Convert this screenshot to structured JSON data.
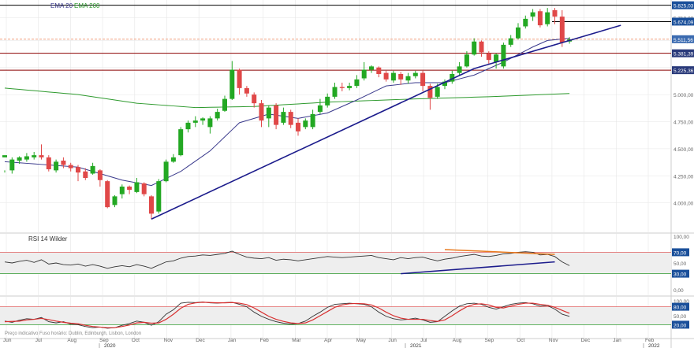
{
  "colors": {
    "up": "#23a823",
    "down": "#e04848",
    "ema20": "#3a3a8c",
    "ema200": "#2e9a2e",
    "trendline": "#1c1c8c",
    "hline_dark": "#8b0000",
    "hline_dashed": "#f0a080",
    "rsi_line": "#333333",
    "rsi_trend_orange": "#e87a1e",
    "rsi_trend_blue": "#1c1c8c",
    "rsi_band_fill": "#eeeeee",
    "stoch_k": "#333333",
    "stoch_d": "#d83030",
    "level_red": "#e06060",
    "level_green": "#2e9a2e",
    "grid": "#e6e6e6",
    "axis_text": "#666666"
  },
  "legend": {
    "ema20_label": "EMA 20",
    "ema200_label": "EMA 200",
    "rsi_label": "RSI 14 Wilder"
  },
  "footer": {
    "note": "Preço indicativo    Fuso horário: Dublin, Edinburgh, Lisbon, London"
  },
  "chart_data": [
    {
      "type": "candlestick",
      "panel": "price",
      "interval": "weekly",
      "ylim": [
        3750,
        5830
      ],
      "yticks": [
        4000,
        4250,
        4500,
        4750,
        5000,
        5250,
        5500,
        5710
      ],
      "ytick_labels": [
        "4.000,00",
        "4.250,00",
        "4.500,00",
        "4.750,00",
        "5.000,00",
        "5.250,00",
        "5.500,00",
        "5.710,00"
      ],
      "price_tags": [
        {
          "label": "5.825,03",
          "value": 5825.03,
          "style": "black"
        },
        {
          "label": "5.674,09",
          "value": 5674.09,
          "style": "black"
        },
        {
          "label": "5.511,56",
          "value": 5511.56,
          "style": "dashed"
        },
        {
          "label": "5.381,39",
          "value": 5381.39,
          "style": "dark"
        },
        {
          "label": "5.225,36",
          "value": 5225.36,
          "style": "dark"
        }
      ],
      "xlabels": [
        "Jun",
        "Jul",
        "Aug",
        "Sep",
        "Oct",
        "Nov",
        "Dec",
        "Jan",
        "Feb",
        "Mar",
        "Apr",
        "May",
        "Jun",
        "Jul",
        "Aug",
        "Sep",
        "Oct",
        "Nov",
        "Dec",
        "Jan",
        "Feb"
      ],
      "year_labels": [
        "2020",
        "2021",
        "2022"
      ],
      "candles": [
        [
          4420,
          4440,
          4300,
          4280
        ],
        [
          4300,
          4400,
          4420,
          4270
        ],
        [
          4390,
          4420,
          4430,
          4360
        ],
        [
          4400,
          4430,
          4460,
          4380
        ],
        [
          4420,
          4440,
          4470,
          4400
        ],
        [
          4440,
          4420,
          4540,
          4400
        ],
        [
          4420,
          4310,
          4440,
          4290
        ],
        [
          4300,
          4380,
          4400,
          4280
        ],
        [
          4390,
          4350,
          4420,
          4320
        ],
        [
          4350,
          4320,
          4370,
          4290
        ],
        [
          4330,
          4280,
          4350,
          4200
        ],
        [
          4290,
          4230,
          4320,
          4210
        ],
        [
          4270,
          4340,
          4370,
          4260
        ],
        [
          4300,
          4210,
          4310,
          4150
        ],
        [
          4200,
          3960,
          4210,
          3950
        ],
        [
          3980,
          4060,
          4070,
          3960
        ],
        [
          4080,
          4150,
          4170,
          4040
        ],
        [
          4150,
          4120,
          4160,
          4080
        ],
        [
          4100,
          4190,
          4230,
          4090
        ],
        [
          4180,
          4080,
          4190,
          4060
        ],
        [
          4060,
          3900,
          4070,
          3850
        ],
        [
          3920,
          4200,
          4220,
          3900
        ],
        [
          4200,
          4380,
          4400,
          4190
        ],
        [
          4380,
          4420,
          4450,
          4370
        ],
        [
          4440,
          4680,
          4700,
          4430
        ],
        [
          4680,
          4740,
          4760,
          4650
        ],
        [
          4740,
          4760,
          4800,
          4700
        ],
        [
          4760,
          4780,
          4790,
          4720
        ],
        [
          4700,
          4780,
          4800,
          4640
        ],
        [
          4780,
          4840,
          4870,
          4760
        ],
        [
          4850,
          4960,
          4990,
          4840
        ],
        [
          4960,
          5230,
          5310,
          4950
        ],
        [
          5230,
          5060,
          5240,
          5000
        ],
        [
          5060,
          5010,
          5080,
          4980
        ],
        [
          5000,
          4920,
          5020,
          4880
        ],
        [
          4920,
          4760,
          4950,
          4700
        ],
        [
          4780,
          4880,
          4900,
          4700
        ],
        [
          4900,
          4720,
          4920,
          4680
        ],
        [
          4740,
          4840,
          4880,
          4720
        ],
        [
          4840,
          4720,
          4860,
          4690
        ],
        [
          4740,
          4660,
          4780,
          4620
        ],
        [
          4700,
          4760,
          4780,
          4680
        ],
        [
          4700,
          4820,
          4860,
          4680
        ],
        [
          4840,
          4900,
          4960,
          4820
        ],
        [
          4900,
          4980,
          5010,
          4880
        ],
        [
          4980,
          5070,
          5110,
          4960
        ],
        [
          5070,
          5060,
          5110,
          5030
        ],
        [
          5060,
          5080,
          5110,
          5040
        ],
        [
          5080,
          5140,
          5180,
          5060
        ],
        [
          5150,
          5230,
          5300,
          5130
        ],
        [
          5230,
          5260,
          5270,
          5200
        ],
        [
          5250,
          5190,
          5260,
          5160
        ],
        [
          5200,
          5140,
          5220,
          5120
        ],
        [
          5130,
          5200,
          5220,
          5110
        ],
        [
          5190,
          5140,
          5210,
          5090
        ],
        [
          5130,
          5170,
          5200,
          5100
        ],
        [
          5170,
          5200,
          5220,
          5150
        ],
        [
          5200,
          5080,
          5220,
          5030
        ],
        [
          5080,
          4970,
          5100,
          4860
        ],
        [
          4980,
          5070,
          5100,
          4960
        ],
        [
          5080,
          5120,
          5140,
          5050
        ],
        [
          5120,
          5190,
          5220,
          5100
        ],
        [
          5200,
          5260,
          5300,
          5180
        ],
        [
          5260,
          5370,
          5400,
          5250
        ],
        [
          5370,
          5490,
          5520,
          5360
        ],
        [
          5490,
          5390,
          5500,
          5350
        ],
        [
          5380,
          5320,
          5400,
          5280
        ],
        [
          5300,
          5370,
          5380,
          5240
        ],
        [
          5260,
          5460,
          5480,
          5240
        ],
        [
          5460,
          5520,
          5550,
          5440
        ],
        [
          5520,
          5620,
          5660,
          5510
        ],
        [
          5630,
          5700,
          5730,
          5610
        ],
        [
          5720,
          5760,
          5790,
          5680
        ],
        [
          5770,
          5640,
          5790,
          5620
        ],
        [
          5650,
          5760,
          5800,
          5630
        ],
        [
          5780,
          5720,
          5800,
          5650
        ],
        [
          5720,
          5480,
          5780,
          5440
        ],
        [
          5490,
          5510,
          5530,
          5470
        ]
      ],
      "ema20_anchors": [
        [
          0,
          4380
        ],
        [
          10,
          4330
        ],
        [
          16,
          4210
        ],
        [
          20,
          4160
        ],
        [
          24,
          4290
        ],
        [
          28,
          4480
        ],
        [
          32,
          4740
        ],
        [
          36,
          4820
        ],
        [
          40,
          4780
        ],
        [
          44,
          4830
        ],
        [
          48,
          4950
        ],
        [
          52,
          5080
        ],
        [
          56,
          5110
        ],
        [
          60,
          5110
        ],
        [
          64,
          5180
        ],
        [
          68,
          5300
        ],
        [
          72,
          5440
        ],
        [
          74,
          5500
        ],
        [
          77,
          5520
        ]
      ],
      "ema200_anchors": [
        [
          0,
          5060
        ],
        [
          10,
          5000
        ],
        [
          18,
          4920
        ],
        [
          26,
          4880
        ],
        [
          34,
          4890
        ],
        [
          44,
          4930
        ],
        [
          56,
          4960
        ],
        [
          66,
          4980
        ],
        [
          77,
          5010
        ]
      ],
      "trendlines": [
        {
          "points": [
            [
              20,
              3850
            ],
            [
              64,
              5240
            ]
          ]
        },
        {
          "points": [
            [
              64,
              5240
            ],
            [
              84,
              5640
            ]
          ]
        }
      ],
      "horizontal_lines": [
        5825.03,
        5674.09,
        5511.56,
        5381.39,
        5225.36
      ]
    },
    {
      "type": "line",
      "panel": "rsi",
      "title": "RSI 14 Wilder",
      "ylim": [
        0,
        100
      ],
      "ytick_labels": [
        "100,00",
        "70,00",
        "50,00",
        "30,00",
        "0,00"
      ],
      "levels": [
        70,
        30
      ],
      "values": [
        52,
        50,
        53,
        55,
        51,
        56,
        48,
        50,
        47,
        46,
        48,
        44,
        47,
        44,
        40,
        43,
        45,
        43,
        47,
        44,
        40,
        46,
        52,
        54,
        59,
        62,
        63,
        65,
        64,
        66,
        68,
        72,
        66,
        61,
        59,
        58,
        60,
        55,
        57,
        56,
        54,
        56,
        58,
        60,
        62,
        61,
        60,
        61,
        62,
        63,
        64,
        60,
        58,
        56,
        60,
        58,
        60,
        61,
        57,
        54,
        57,
        59,
        62,
        64,
        66,
        63,
        62,
        64,
        67,
        68,
        70,
        71,
        70,
        65,
        66,
        62,
        52,
        45
      ],
      "trendlines": [
        {
          "color": "orange",
          "points": [
            [
              60,
              75
            ],
            [
              75,
              66
            ]
          ]
        },
        {
          "color": "blue",
          "points": [
            [
              54,
              30
            ],
            [
              75,
              52
            ]
          ]
        }
      ]
    },
    {
      "type": "line",
      "panel": "stochastic",
      "ylim": [
        0,
        100
      ],
      "ytick_labels": [
        "100,00",
        "80,00",
        "50,00",
        "20,00"
      ],
      "levels": [
        80,
        20
      ],
      "k_values": [
        32,
        28,
        35,
        40,
        38,
        44,
        30,
        26,
        30,
        22,
        20,
        14,
        10,
        12,
        8,
        10,
        18,
        24,
        32,
        28,
        18,
        30,
        55,
        70,
        92,
        95,
        94,
        96,
        93,
        92,
        94,
        95,
        88,
        80,
        62,
        48,
        38,
        30,
        25,
        22,
        24,
        32,
        48,
        62,
        78,
        88,
        90,
        92,
        90,
        88,
        80,
        62,
        48,
        40,
        36,
        38,
        42,
        36,
        28,
        30,
        48,
        66,
        82,
        90,
        92,
        88,
        78,
        72,
        80,
        88,
        92,
        94,
        90,
        82,
        84,
        72,
        55,
        48
      ],
      "d_values": [
        30,
        31,
        32,
        36,
        38,
        41,
        37,
        32,
        28,
        25,
        23,
        18,
        14,
        12,
        10,
        10,
        14,
        19,
        26,
        28,
        25,
        26,
        38,
        55,
        75,
        88,
        93,
        95,
        94,
        93,
        93,
        94,
        92,
        87,
        76,
        62,
        48,
        38,
        31,
        26,
        24,
        26,
        36,
        50,
        64,
        78,
        86,
        90,
        91,
        90,
        86,
        76,
        62,
        50,
        42,
        38,
        38,
        38,
        34,
        31,
        36,
        50,
        66,
        80,
        88,
        90,
        86,
        78,
        76,
        82,
        88,
        92,
        92,
        88,
        85,
        78,
        68,
        58
      ]
    }
  ]
}
